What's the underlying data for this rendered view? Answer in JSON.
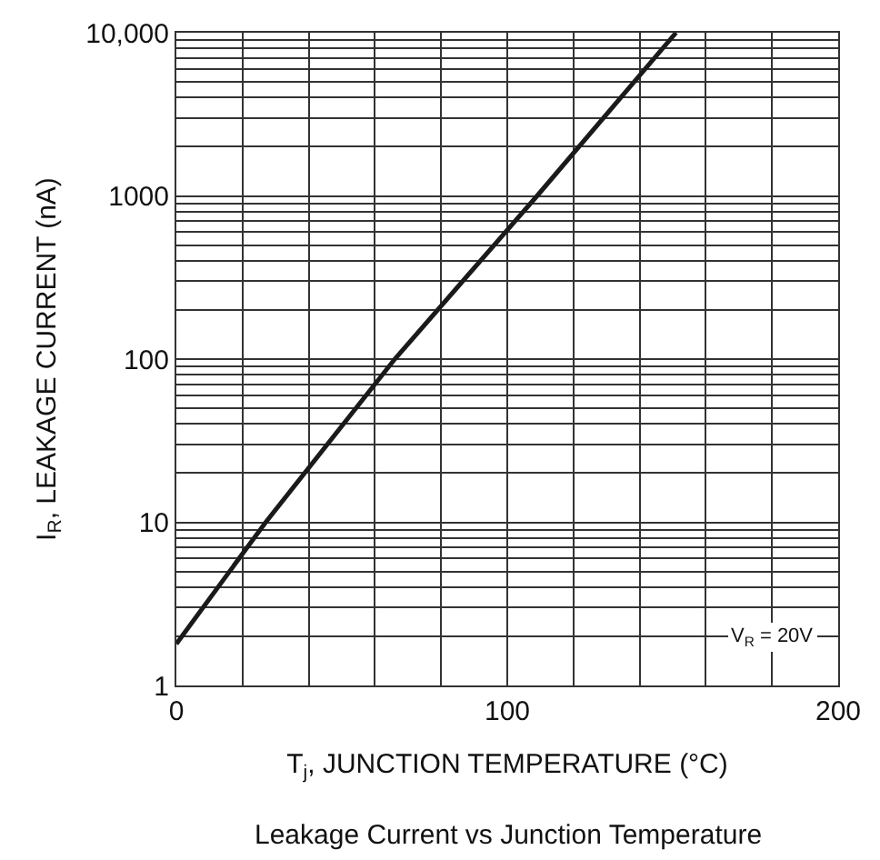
{
  "chart_data": {
    "type": "line",
    "xlabel": "T$_{j}$, JUNCTION TEMPERATURE (°C)",
    "ylabel": "I$_{R}$, LEAKAGE CURRENT (nA)",
    "x": [
      0,
      27,
      66,
      109,
      151
    ],
    "series": [
      {
        "color": "#1a1a1a",
        "values": [
          1.8,
          10,
          100,
          1000,
          10000
        ]
      }
    ],
    "log": "y",
    "grid": true,
    "marker": "none",
    "line_style": "solid",
    "xlim": [
      0,
      200
    ],
    "xticks": [
      0,
      {
        "value": 20,
        "label": null
      },
      {
        "value": 40,
        "label": null
      },
      {
        "value": 60,
        "label": null
      },
      {
        "value": 80,
        "label": null
      },
      100,
      {
        "value": 120,
        "label": null
      },
      {
        "value": 140,
        "label": null
      },
      {
        "value": 160,
        "label": null
      },
      {
        "value": 180,
        "label": null
      },
      200
    ],
    "ylim": [
      1,
      10000
    ],
    "yticks": [
      1,
      {
        "value": 2,
        "label": null
      },
      {
        "value": 3,
        "label": null
      },
      {
        "value": 4,
        "label": null
      },
      {
        "value": 5,
        "label": null
      },
      {
        "value": 6,
        "label": null
      },
      {
        "value": 7,
        "label": null
      },
      {
        "value": 8,
        "label": null
      },
      {
        "value": 9,
        "label": null
      },
      10,
      {
        "value": 20,
        "label": null
      },
      {
        "value": 30,
        "label": null
      },
      {
        "value": 40,
        "label": null
      },
      {
        "value": 50,
        "label": null
      },
      {
        "value": 60,
        "label": null
      },
      {
        "value": 70,
        "label": null
      },
      {
        "value": 80,
        "label": null
      },
      {
        "value": 90,
        "label": null
      },
      100,
      {
        "value": 200,
        "label": null
      },
      {
        "value": 300,
        "label": null
      },
      {
        "value": 400,
        "label": null
      },
      {
        "value": 500,
        "label": null
      },
      {
        "value": 600,
        "label": null
      },
      {
        "value": 700,
        "label": null
      },
      {
        "value": 800,
        "label": null
      },
      {
        "value": 900,
        "label": null
      },
      1000,
      {
        "value": 2000,
        "label": null
      },
      {
        "value": 3000,
        "label": null
      },
      {
        "value": 4000,
        "label": null
      },
      {
        "value": 5000,
        "label": null
      },
      {
        "value": 6000,
        "label": null
      },
      {
        "value": 7000,
        "label": null
      },
      {
        "value": 8000,
        "label": null
      },
      {
        "value": 9000,
        "label": null
      },
      {
        "value": 10000,
        "label": "10,000"
      }
    ],
    "annotations": [
      "V$_{R}$ = 20V",
      "Leakage Current vs Junction Temperature"
    ]
  }
}
